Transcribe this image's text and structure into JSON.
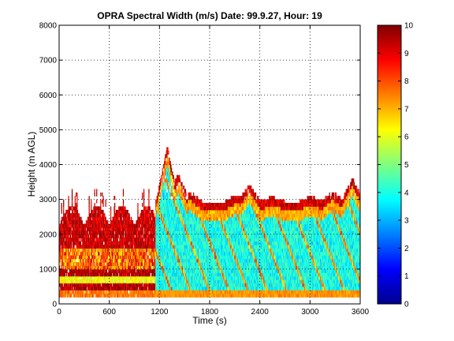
{
  "chart_data": {
    "type": "heatmap",
    "title": "OPRA Spectral Width (m/s)  Date: 99.9.27, Hour: 19",
    "xlabel": "Time (s)",
    "ylabel": "Height (m AGL)",
    "xlim": [
      0,
      3600
    ],
    "ylim": [
      0,
      8000
    ],
    "xticks": [
      "0",
      "600",
      "1200",
      "1800",
      "2400",
      "3000",
      "3600"
    ],
    "yticks": [
      "0",
      "1000",
      "2000",
      "3000",
      "4000",
      "5000",
      "6000",
      "7000",
      "8000"
    ],
    "grid": "dotted",
    "colorbar": {
      "range": [
        0,
        10
      ],
      "ticks": [
        "0",
        "1",
        "2",
        "3",
        "4",
        "5",
        "6",
        "7",
        "8",
        "9",
        "10"
      ],
      "colormap": "jet"
    },
    "echo_segments": [
      {
        "t_start": 0,
        "t_end": 1150,
        "top_m": 2700,
        "typical_value": 8.5,
        "description": "boundary layer echo, mostly high spectral width"
      },
      {
        "t_start": 1150,
        "t_end": 1700,
        "top_m": 4500,
        "typical_value": 3.5,
        "description": "deep echo plume, low spectral width core"
      },
      {
        "t_start": 1700,
        "t_end": 2700,
        "top_m": 3500,
        "typical_value": 4.0,
        "description": "echo with cellular structure"
      },
      {
        "t_start": 2700,
        "t_end": 3600,
        "top_m": 3700,
        "typical_value": 4.0,
        "description": "echo with cellular structure"
      }
    ]
  }
}
